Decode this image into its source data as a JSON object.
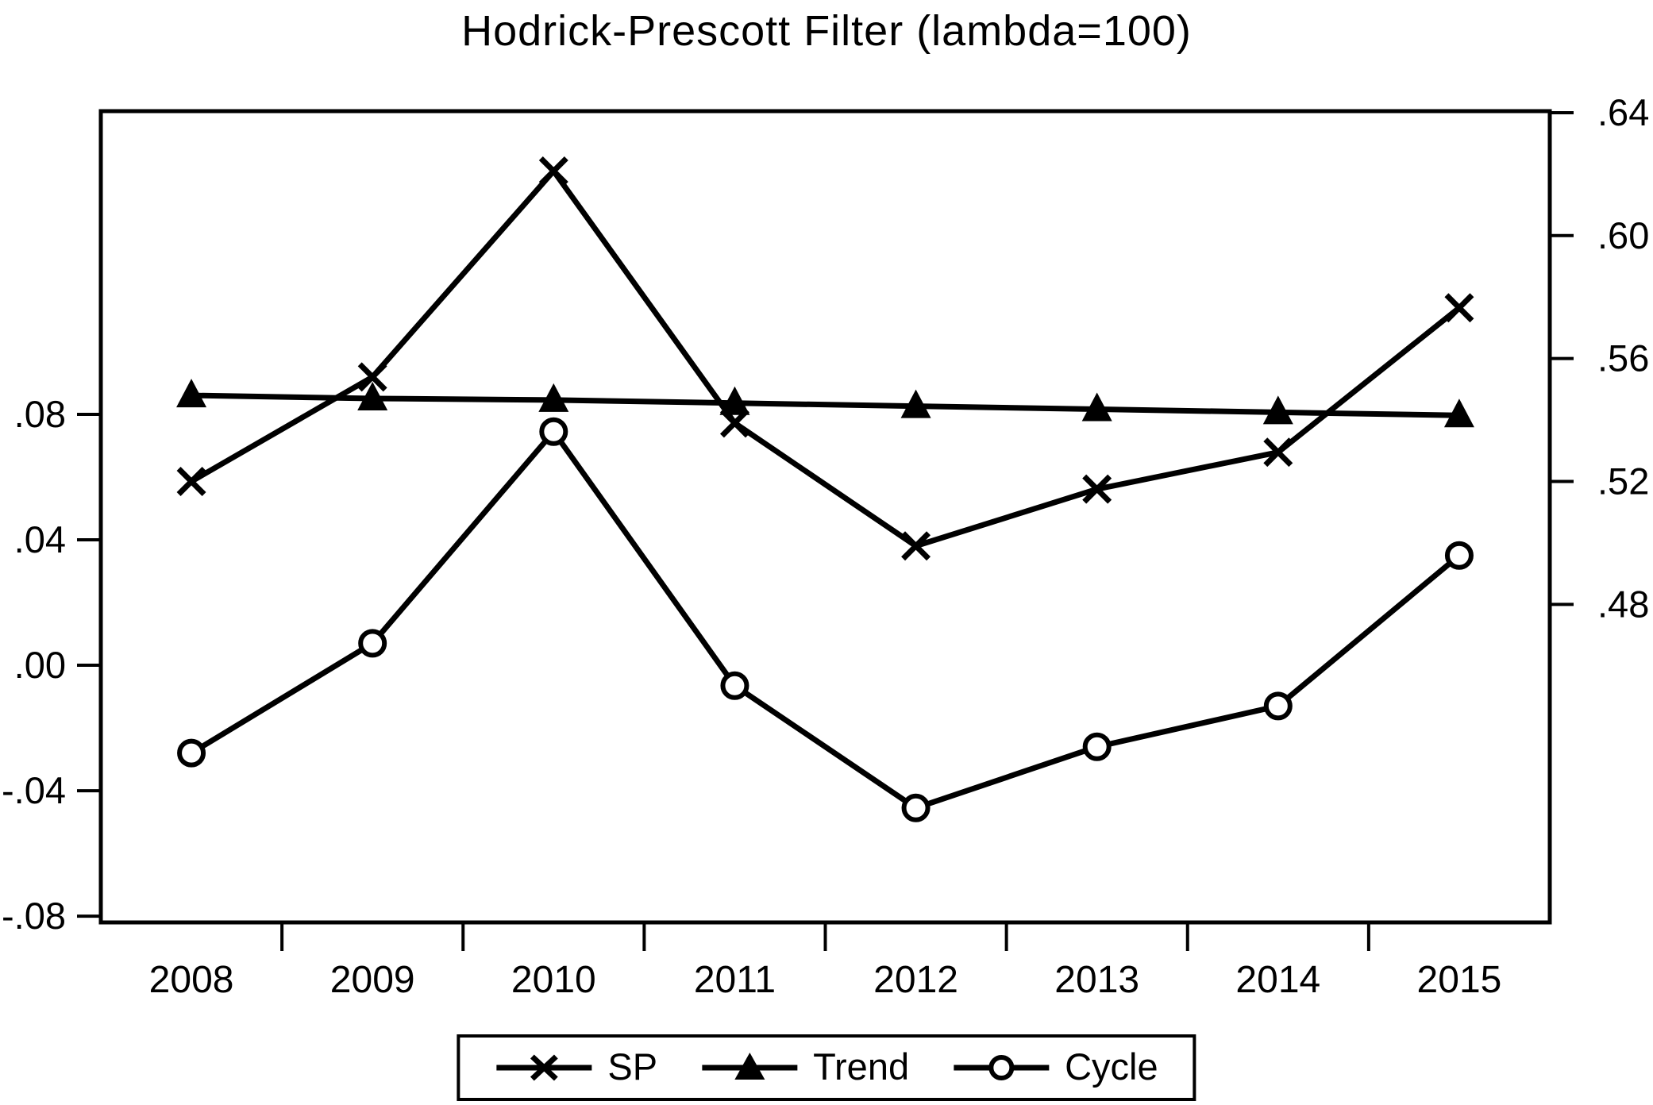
{
  "title": "Hodrick-Prescott Filter (lambda=100)",
  "colors": {
    "ink": "#000000",
    "background": "#ffffff"
  },
  "legend": {
    "position": "bottom-center",
    "items": [
      {
        "label": "SP",
        "marker": "x-marker"
      },
      {
        "label": "Trend",
        "marker": "triangle-marker"
      },
      {
        "label": "Cycle",
        "marker": "circle-marker"
      }
    ]
  },
  "chart_data": {
    "type": "line",
    "title": "Hodrick-Prescott Filter (lambda=100)",
    "categories": [
      "2008",
      "2009",
      "2010",
      "2011",
      "2012",
      "2013",
      "2014",
      "2015"
    ],
    "series": [
      {
        "name": "SP",
        "axis": "right",
        "marker": "x",
        "values": [
          0.52,
          0.554,
          0.621,
          0.539,
          0.499,
          0.5175,
          0.5295,
          0.5765
        ]
      },
      {
        "name": "Trend",
        "axis": "right",
        "marker": "triangle",
        "values": [
          0.548,
          0.547,
          0.5465,
          0.5455,
          0.5445,
          0.5435,
          0.5425,
          0.5415
        ]
      },
      {
        "name": "Cycle",
        "axis": "left",
        "marker": "circle",
        "values": [
          -0.028,
          0.007,
          0.0745,
          -0.0065,
          -0.0455,
          -0.026,
          -0.013,
          0.035
        ]
      }
    ],
    "left_axis": {
      "tick_labels": [
        ".08",
        ".04",
        ".00",
        "-.04",
        "-.08"
      ],
      "tick_values": [
        0.08,
        0.04,
        0.0,
        -0.04,
        -0.08
      ],
      "range": [
        -0.082,
        0.1767
      ]
    },
    "right_axis": {
      "tick_labels": [
        ".64",
        ".60",
        ".56",
        ".52",
        ".48"
      ],
      "tick_values": [
        0.64,
        0.6,
        0.56,
        0.52,
        0.48
      ],
      "range": [
        0.3765,
        0.6405
      ]
    },
    "grid": false,
    "legend_position": "bottom"
  }
}
